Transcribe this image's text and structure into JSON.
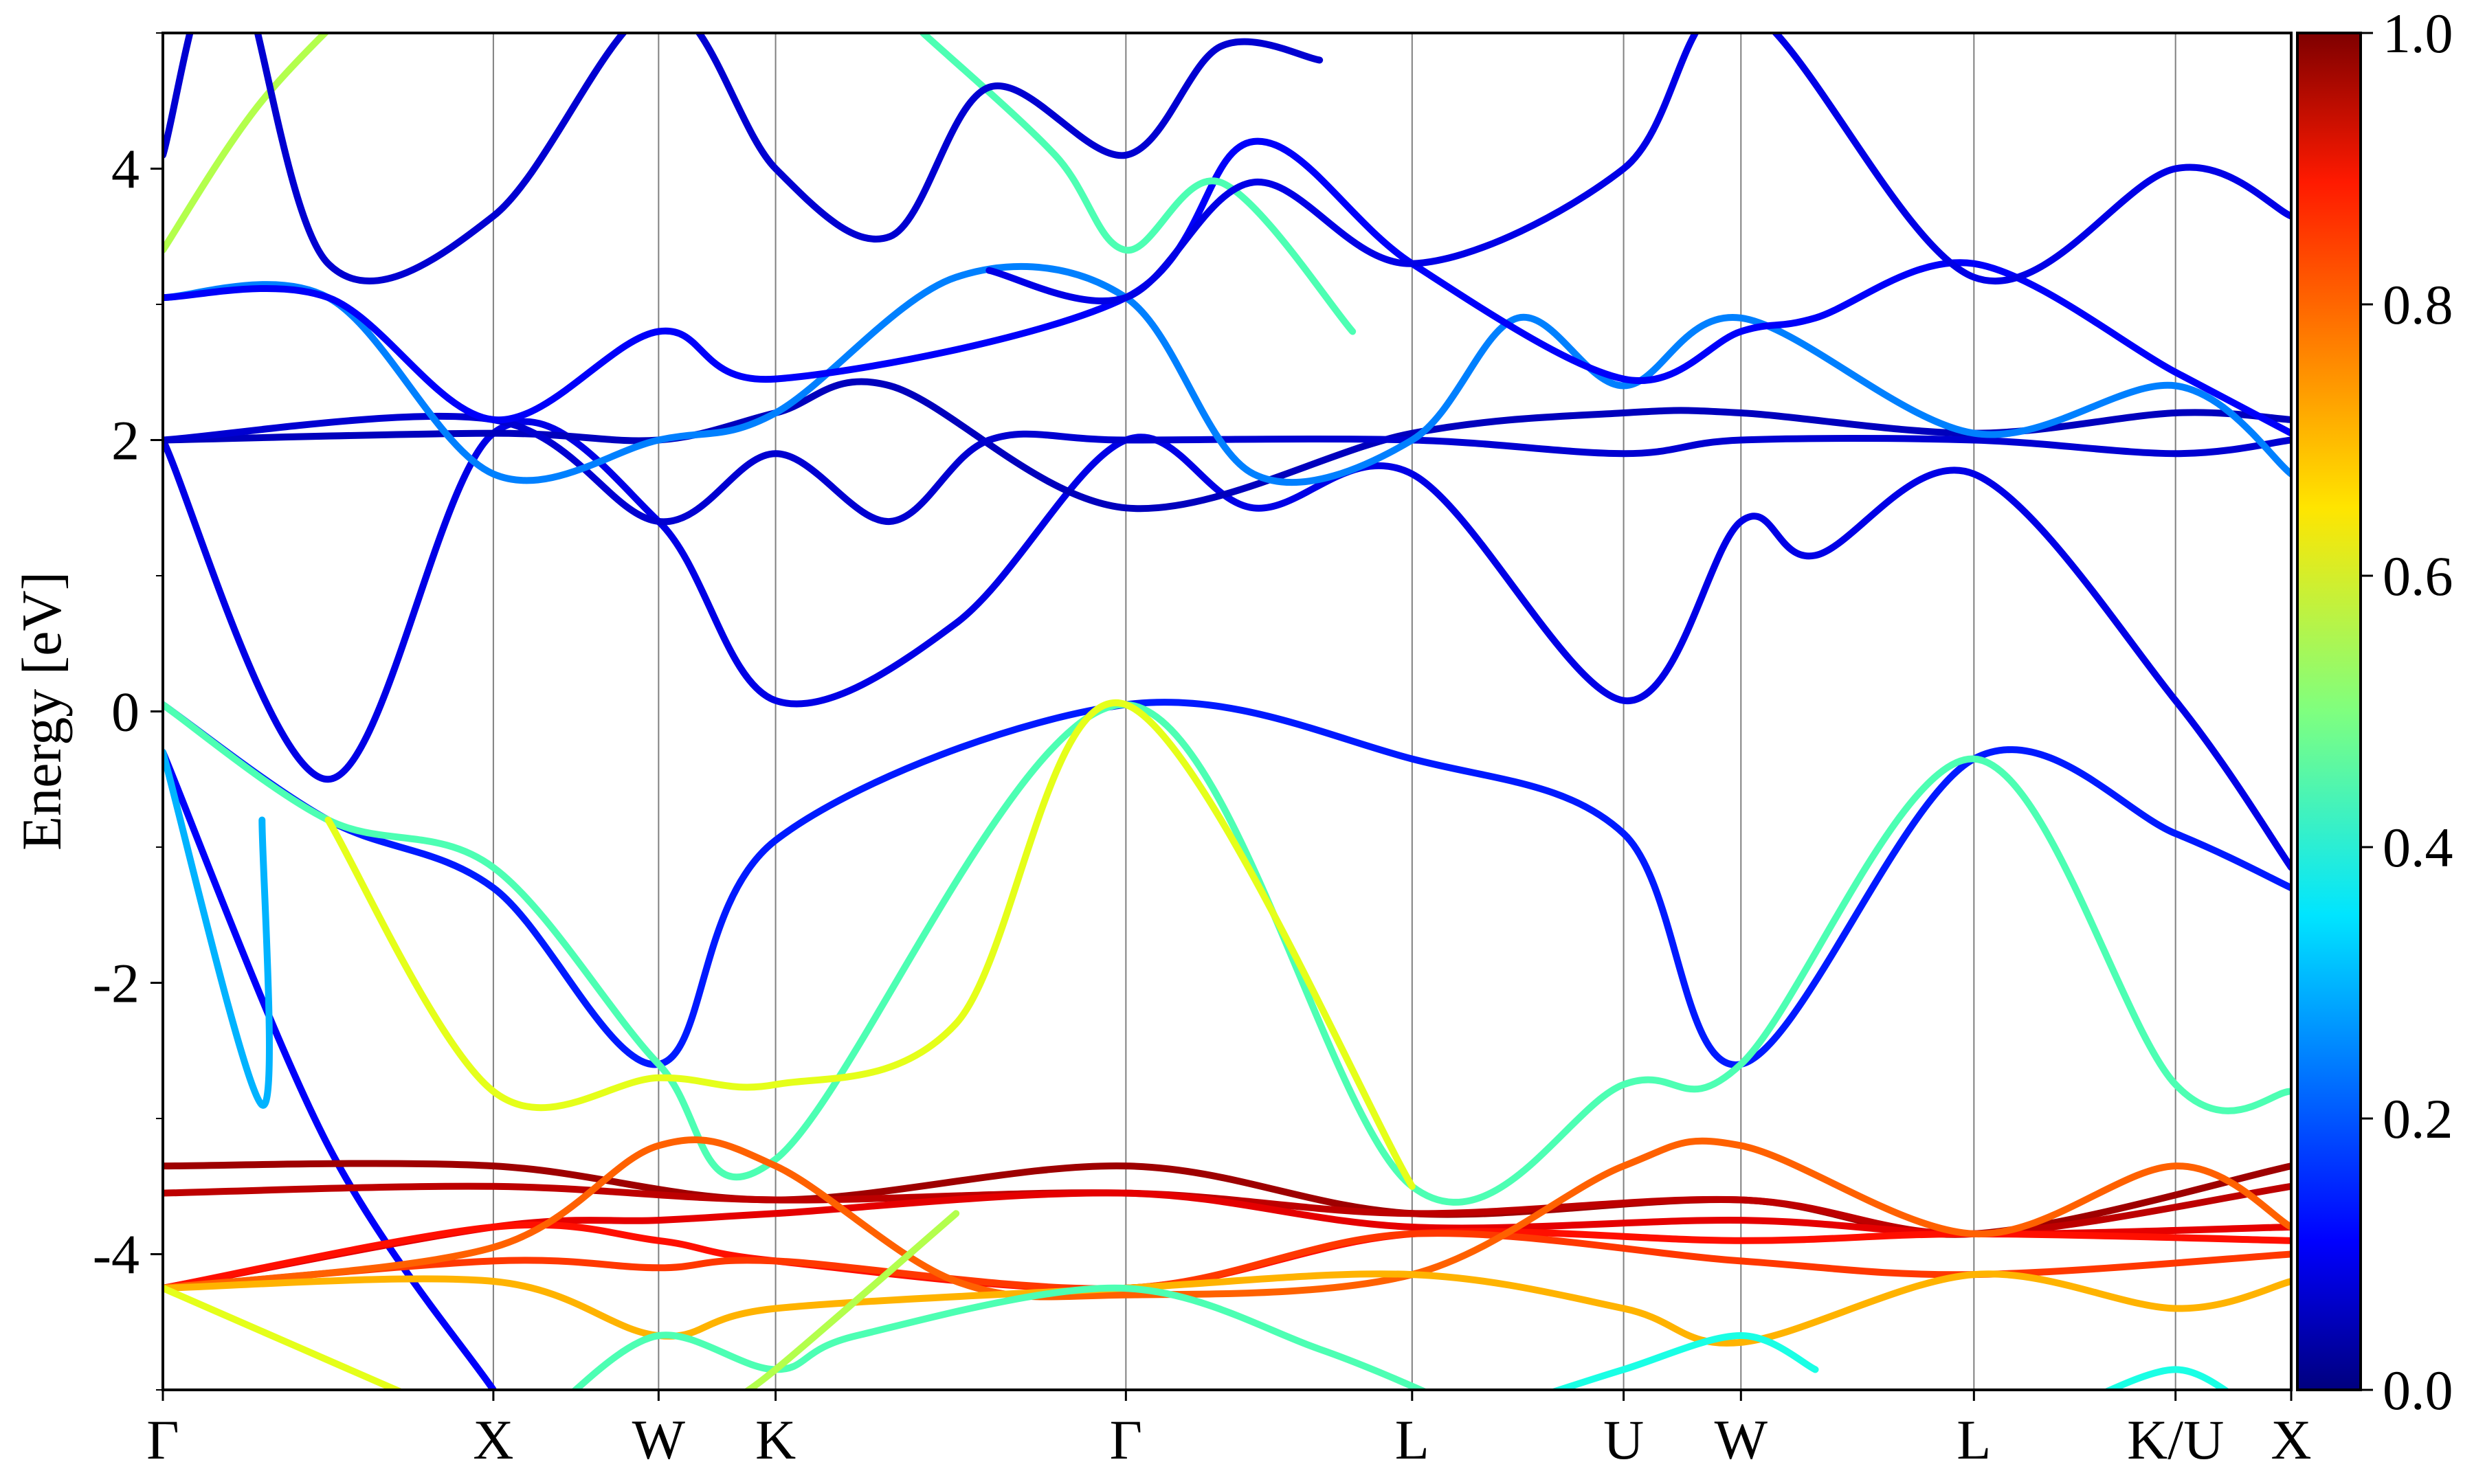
{
  "chart_data": {
    "type": "line",
    "title": "",
    "ylabel": "Energy [eV]",
    "xlabel": "",
    "ylim": [
      -5,
      5
    ],
    "yticks": [
      -4,
      -2,
      0,
      2,
      4
    ],
    "ytick_labels": [
      "-4",
      "-2",
      "0",
      "2",
      "4"
    ],
    "grid": "vertical lines at high-symmetry points",
    "kpath": [
      {
        "label": "Γ",
        "x": 0
      },
      {
        "label": "X",
        "x": 1.0
      },
      {
        "label": "W",
        "x": 1.5
      },
      {
        "label": "K",
        "x": 1.854
      },
      {
        "label": "Γ",
        "x": 2.914
      },
      {
        "label": "L",
        "x": 3.78
      },
      {
        "label": "U",
        "x": 4.42
      },
      {
        "label": "W",
        "x": 4.775
      },
      {
        "label": "L",
        "x": 5.48
      },
      {
        "label": "K/U",
        "x": 6.09
      },
      {
        "label": "X",
        "x": 6.44
      }
    ],
    "colorbar": {
      "min": 0.0,
      "max": 1.0,
      "ticks": [
        "0.0",
        "0.2",
        "0.4",
        "0.6",
        "0.8",
        "1.0"
      ],
      "colormap": "jet"
    },
    "series": [
      {
        "w": 0.12,
        "points": [
          [
            0,
            -0.3
          ],
          [
            0.5,
            -3.2
          ],
          [
            1.0,
            -5.0
          ]
        ]
      },
      {
        "w": 0.3,
        "points": [
          [
            0,
            -0.3
          ],
          [
            0.3,
            -2.9
          ],
          [
            0.3,
            -0.8
          ]
        ]
      },
      {
        "w": 0.15,
        "points": [
          [
            0,
            0.05
          ],
          [
            0.5,
            -0.8
          ],
          [
            1.0,
            -1.3
          ],
          [
            1.5,
            -2.6
          ],
          [
            1.854,
            -0.95
          ],
          [
            2.914,
            0.05
          ],
          [
            3.78,
            -0.35
          ],
          [
            4.42,
            -0.9
          ],
          [
            4.775,
            -2.6
          ],
          [
            5.48,
            -0.35
          ],
          [
            6.09,
            -0.9
          ],
          [
            6.44,
            -1.3
          ]
        ]
      },
      {
        "w": 0.45,
        "points": [
          [
            0,
            0.05
          ],
          [
            0.5,
            -0.8
          ],
          [
            1.0,
            -1.15
          ],
          [
            1.5,
            -2.6
          ],
          [
            1.854,
            -3.3
          ],
          [
            2.914,
            0.05
          ],
          [
            3.78,
            -3.5
          ],
          [
            4.42,
            -2.75
          ],
          [
            4.775,
            -2.6
          ],
          [
            5.48,
            -0.35
          ],
          [
            6.09,
            -2.75
          ],
          [
            6.44,
            -2.8
          ]
        ]
      },
      {
        "w": 0.6,
        "points": [
          [
            0.5,
            -0.8
          ],
          [
            1.0,
            -2.8
          ],
          [
            1.5,
            -2.7
          ],
          [
            1.854,
            -2.75
          ],
          [
            2.4,
            -2.3
          ],
          [
            2.914,
            0.05
          ],
          [
            3.78,
            -3.5
          ]
        ]
      },
      {
        "w": 0.1,
        "points": [
          [
            0,
            2.0
          ],
          [
            0.5,
            -0.5
          ],
          [
            1.0,
            2.05
          ],
          [
            1.5,
            1.4
          ],
          [
            1.854,
            0.08
          ],
          [
            2.4,
            0.65
          ],
          [
            2.914,
            2.0
          ],
          [
            3.3,
            1.5
          ],
          [
            3.78,
            1.75
          ],
          [
            4.42,
            0.08
          ],
          [
            4.775,
            1.4
          ],
          [
            5.0,
            1.15
          ],
          [
            5.48,
            1.75
          ],
          [
            6.09,
            0.08
          ],
          [
            6.44,
            -1.15
          ]
        ]
      },
      {
        "w": 0.06,
        "points": [
          [
            0,
            2.0
          ],
          [
            1.0,
            2.05
          ],
          [
            1.5,
            2.0
          ],
          [
            1.854,
            2.2
          ],
          [
            2.2,
            2.4
          ],
          [
            2.914,
            1.5
          ],
          [
            3.78,
            2.05
          ],
          [
            4.42,
            2.2
          ],
          [
            4.775,
            2.2
          ],
          [
            5.48,
            2.05
          ],
          [
            6.09,
            2.2
          ],
          [
            6.44,
            2.15
          ]
        ]
      },
      {
        "w": 0.08,
        "points": [
          [
            0,
            2.0
          ],
          [
            1.0,
            2.15
          ],
          [
            1.5,
            1.4
          ],
          [
            1.854,
            1.9
          ],
          [
            2.2,
            1.4
          ],
          [
            2.5,
            2.0
          ],
          [
            2.914,
            2.0
          ],
          [
            3.78,
            2.0
          ],
          [
            4.42,
            1.9
          ],
          [
            4.775,
            2.0
          ],
          [
            5.48,
            2.0
          ],
          [
            6.09,
            1.9
          ],
          [
            6.44,
            2.0
          ]
        ]
      },
      {
        "w": 0.25,
        "points": [
          [
            0,
            3.05
          ],
          [
            0.5,
            3.05
          ],
          [
            1.0,
            1.75
          ],
          [
            1.5,
            2.0
          ],
          [
            1.854,
            2.2
          ],
          [
            2.4,
            3.2
          ],
          [
            2.914,
            3.05
          ],
          [
            3.3,
            1.75
          ],
          [
            3.78,
            2.0
          ],
          [
            4.1,
            2.9
          ],
          [
            4.42,
            2.4
          ],
          [
            4.775,
            2.9
          ],
          [
            5.48,
            2.05
          ],
          [
            6.09,
            2.4
          ],
          [
            6.44,
            1.75
          ]
        ]
      },
      {
        "w": 0.12,
        "points": [
          [
            0,
            3.05
          ],
          [
            0.5,
            3.05
          ],
          [
            1.0,
            2.15
          ],
          [
            1.5,
            2.8
          ],
          [
            1.854,
            2.45
          ],
          [
            2.914,
            3.05
          ],
          [
            3.3,
            4.2
          ],
          [
            3.78,
            3.3
          ],
          [
            4.42,
            2.45
          ],
          [
            4.775,
            2.8
          ],
          [
            5.0,
            2.9
          ],
          [
            5.48,
            3.3
          ],
          [
            6.09,
            2.5
          ],
          [
            6.44,
            2.05
          ]
        ]
      },
      {
        "w": 0.55,
        "points": [
          [
            0,
            3.4
          ],
          [
            0.3,
            4.5
          ],
          [
            0.7,
            5.5
          ]
        ]
      },
      {
        "w": 0.45,
        "points": [
          [
            2.3,
            5.0
          ],
          [
            2.7,
            4.1
          ],
          [
            2.914,
            3.4
          ],
          [
            3.2,
            3.9
          ],
          [
            3.6,
            2.8
          ]
        ]
      },
      {
        "w": 0.08,
        "points": [
          [
            0,
            4.1
          ],
          [
            0.2,
            5.6
          ],
          [
            0.5,
            3.3
          ],
          [
            1.0,
            3.65
          ],
          [
            1.5,
            5.2
          ],
          [
            1.854,
            4.0
          ],
          [
            2.2,
            3.5
          ],
          [
            2.5,
            4.6
          ],
          [
            2.914,
            4.1
          ],
          [
            3.2,
            4.9
          ],
          [
            3.5,
            4.8
          ]
        ]
      },
      {
        "w": 0.1,
        "points": [
          [
            2.5,
            3.25
          ],
          [
            2.914,
            3.05
          ],
          [
            3.3,
            3.9
          ],
          [
            3.78,
            3.3
          ],
          [
            4.42,
            4.0
          ],
          [
            4.775,
            5.2
          ],
          [
            5.48,
            3.2
          ],
          [
            6.09,
            4.0
          ],
          [
            6.44,
            3.65
          ]
        ]
      },
      {
        "w": 0.97,
        "points": [
          [
            0,
            -3.35
          ],
          [
            1.0,
            -3.35
          ],
          [
            1.854,
            -3.6
          ],
          [
            2.914,
            -3.35
          ],
          [
            3.78,
            -3.7
          ],
          [
            4.775,
            -3.6
          ],
          [
            5.48,
            -3.85
          ],
          [
            6.44,
            -3.35
          ]
        ]
      },
      {
        "w": 0.94,
        "points": [
          [
            0,
            -3.55
          ],
          [
            1.0,
            -3.5
          ],
          [
            1.854,
            -3.6
          ],
          [
            2.914,
            -3.55
          ],
          [
            3.78,
            -3.7
          ],
          [
            4.775,
            -3.6
          ],
          [
            5.48,
            -3.85
          ],
          [
            6.44,
            -3.5
          ]
        ]
      },
      {
        "w": 0.9,
        "points": [
          [
            0,
            -4.25
          ],
          [
            1.0,
            -3.8
          ],
          [
            1.5,
            -3.75
          ],
          [
            1.854,
            -3.7
          ],
          [
            2.914,
            -3.55
          ],
          [
            3.78,
            -3.8
          ],
          [
            4.775,
            -3.75
          ],
          [
            5.48,
            -3.85
          ],
          [
            6.44,
            -3.8
          ]
        ]
      },
      {
        "w": 0.86,
        "points": [
          [
            0,
            -4.25
          ],
          [
            1.0,
            -3.8
          ],
          [
            1.5,
            -3.9
          ],
          [
            1.854,
            -4.05
          ],
          [
            2.914,
            -4.25
          ],
          [
            3.78,
            -3.85
          ],
          [
            4.775,
            -3.9
          ],
          [
            5.48,
            -3.85
          ],
          [
            6.44,
            -3.9
          ]
        ]
      },
      {
        "w": 0.82,
        "points": [
          [
            0,
            -4.25
          ],
          [
            1.0,
            -4.05
          ],
          [
            1.5,
            -4.1
          ],
          [
            1.854,
            -4.05
          ],
          [
            2.914,
            -4.25
          ],
          [
            3.78,
            -3.85
          ],
          [
            4.775,
            -4.05
          ],
          [
            5.48,
            -4.15
          ],
          [
            6.44,
            -4.0
          ]
        ]
      },
      {
        "w": 0.78,
        "points": [
          [
            0,
            -4.25
          ],
          [
            1.0,
            -3.95
          ],
          [
            1.5,
            -3.2
          ],
          [
            1.854,
            -3.35
          ],
          [
            2.4,
            -4.2
          ],
          [
            2.914,
            -4.3
          ],
          [
            3.78,
            -4.15
          ],
          [
            4.42,
            -3.35
          ],
          [
            4.775,
            -3.2
          ],
          [
            5.48,
            -3.85
          ],
          [
            6.09,
            -3.35
          ],
          [
            6.44,
            -3.8
          ]
        ]
      },
      {
        "w": 0.7,
        "points": [
          [
            0,
            -4.25
          ],
          [
            1.0,
            -4.2
          ],
          [
            1.5,
            -4.6
          ],
          [
            1.854,
            -4.4
          ],
          [
            2.914,
            -4.25
          ],
          [
            3.78,
            -4.15
          ],
          [
            4.42,
            -4.4
          ],
          [
            4.775,
            -4.65
          ],
          [
            5.48,
            -4.15
          ],
          [
            6.09,
            -4.4
          ],
          [
            6.44,
            -4.2
          ]
        ]
      },
      {
        "w": 0.6,
        "points": [
          [
            0,
            -4.25
          ],
          [
            0.8,
            -5.1
          ]
        ]
      },
      {
        "w": 0.45,
        "points": [
          [
            1.2,
            -5.1
          ],
          [
            1.5,
            -4.6
          ],
          [
            1.854,
            -4.85
          ],
          [
            2.1,
            -4.6
          ],
          [
            2.9,
            -4.25
          ],
          [
            3.5,
            -4.7
          ],
          [
            3.9,
            -5.1
          ]
        ]
      },
      {
        "w": 0.55,
        "points": [
          [
            1.7,
            -5.1
          ],
          [
            1.854,
            -4.85
          ],
          [
            2.4,
            -3.7
          ]
        ]
      },
      {
        "w": 0.4,
        "points": [
          [
            4.1,
            -5.1
          ],
          [
            4.42,
            -4.85
          ],
          [
            4.775,
            -4.6
          ],
          [
            5.0,
            -4.85
          ]
        ]
      },
      {
        "w": 0.4,
        "points": [
          [
            5.8,
            -5.1
          ],
          [
            6.09,
            -4.85
          ],
          [
            6.3,
            -5.1
          ]
        ]
      }
    ]
  }
}
